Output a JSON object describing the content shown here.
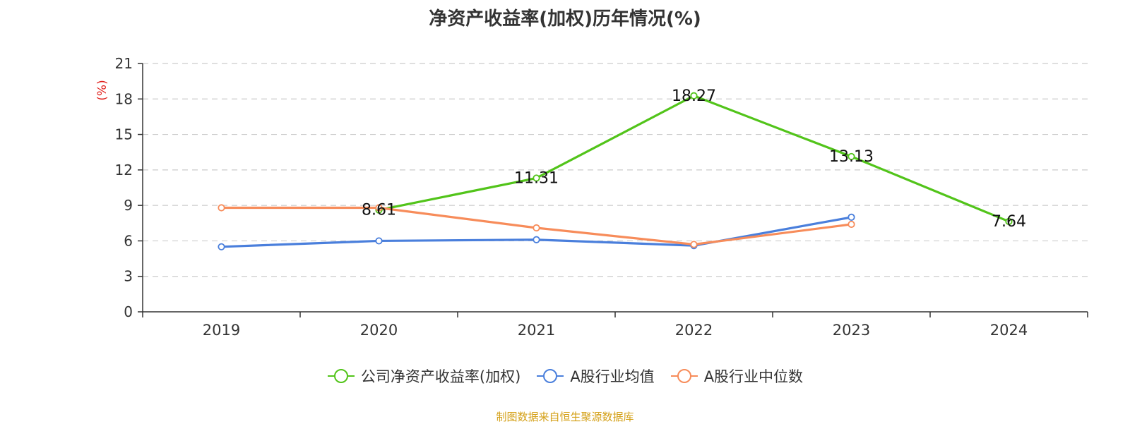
{
  "chart_data": {
    "type": "line",
    "title": "净资产收益率(加权)历年情况(%)",
    "ylabel": "(%)",
    "xlabel": "",
    "categories": [
      "2019",
      "2020",
      "2021",
      "2022",
      "2023",
      "2024"
    ],
    "ylim": [
      0,
      21
    ],
    "yticks": [
      0,
      3,
      6,
      9,
      12,
      15,
      18,
      21
    ],
    "grid": true,
    "legend_position": "bottom",
    "series": [
      {
        "name": "公司净资产收益率(加权)",
        "color": "#52c41a",
        "values": [
          null,
          8.61,
          11.31,
          18.27,
          13.13,
          7.64
        ],
        "data_labels": [
          null,
          "8.61",
          "11.31",
          "18.27",
          "13.13",
          "7.64"
        ]
      },
      {
        "name": "A股行业均值",
        "color": "#4a7fdc",
        "values": [
          5.5,
          6.0,
          6.1,
          5.6,
          8.0,
          null
        ]
      },
      {
        "name": "A股行业中位数",
        "color": "#f78c5a",
        "values": [
          8.8,
          8.8,
          7.1,
          5.7,
          7.4,
          null
        ]
      }
    ]
  },
  "footer": {
    "source": "制图数据来自恒生聚源数据库"
  }
}
